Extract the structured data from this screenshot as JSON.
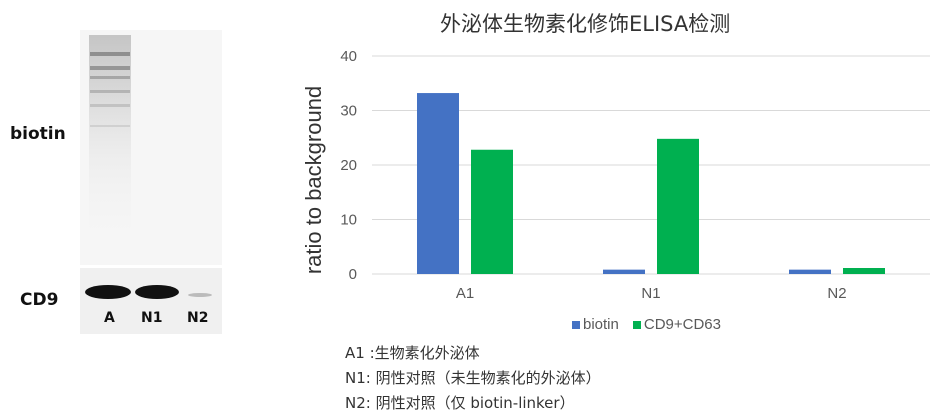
{
  "blot": {
    "biotin_label": "biotin",
    "cd9_label": "CD9",
    "lanes": [
      "A",
      "N1",
      "N2"
    ]
  },
  "chart_data": {
    "type": "bar",
    "title": "外泌体生物素化修饰ELISA检测",
    "ylabel": "ratio to background",
    "xlabel": "",
    "categories": [
      "A1",
      "N1",
      "N2"
    ],
    "ylim": [
      0,
      40
    ],
    "yticks": [
      0,
      10,
      20,
      30,
      40
    ],
    "grid": true,
    "legend_position": "bottom",
    "series": [
      {
        "name": "biotin",
        "color": "#4472c4",
        "values": [
          33.2,
          0.8,
          0.8
        ]
      },
      {
        "name": "CD9+CD63",
        "color": "#00b050",
        "values": [
          22.8,
          24.8,
          1.1
        ]
      }
    ]
  },
  "notes": [
    "A1 :生物素化外泌体",
    "N1: 阴性对照（未生物素化的外泌体）",
    "N2: 阴性对照（仅 biotin-linker）"
  ]
}
